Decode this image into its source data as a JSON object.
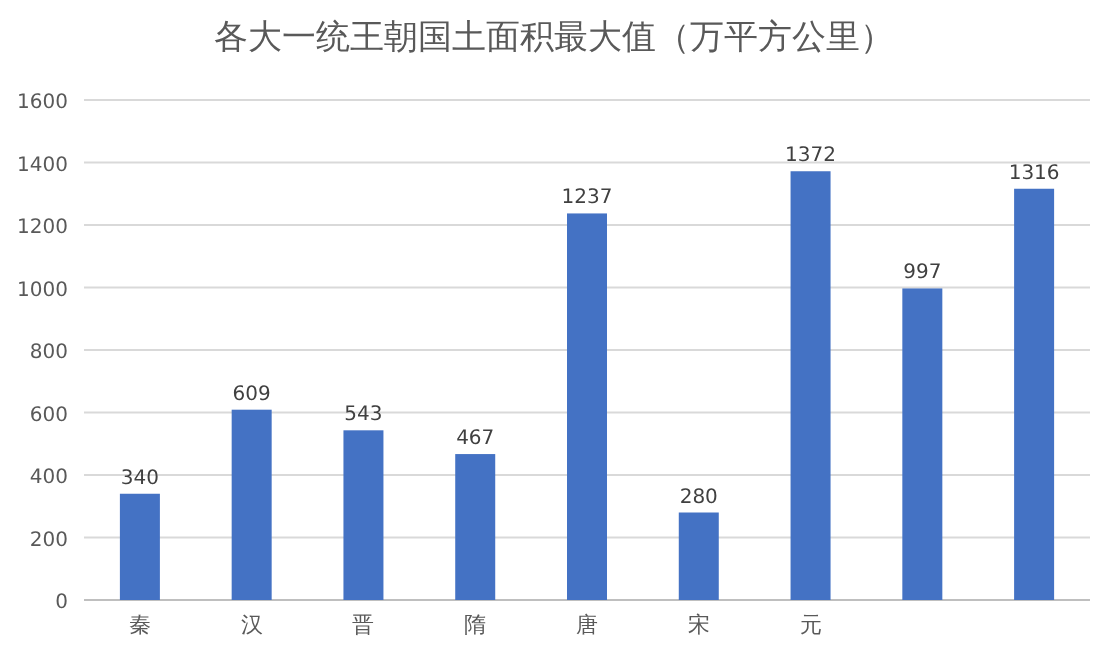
{
  "chart_data": {
    "type": "bar",
    "title": "各大一统王朝国土面积最大值（万平方公里）",
    "categories": [
      "秦",
      "汉",
      "晋",
      "隋",
      "唐",
      "宋",
      "元",
      null,
      null
    ],
    "values": [
      340,
      609,
      543,
      467,
      1237,
      280,
      1372,
      997,
      1316
    ],
    "color": "#4472c4",
    "ylim": [
      0,
      1600
    ],
    "yticks": [
      0,
      200,
      400,
      600,
      800,
      1000,
      1200,
      1400,
      1600
    ],
    "grid": "y",
    "data_labels": true
  }
}
